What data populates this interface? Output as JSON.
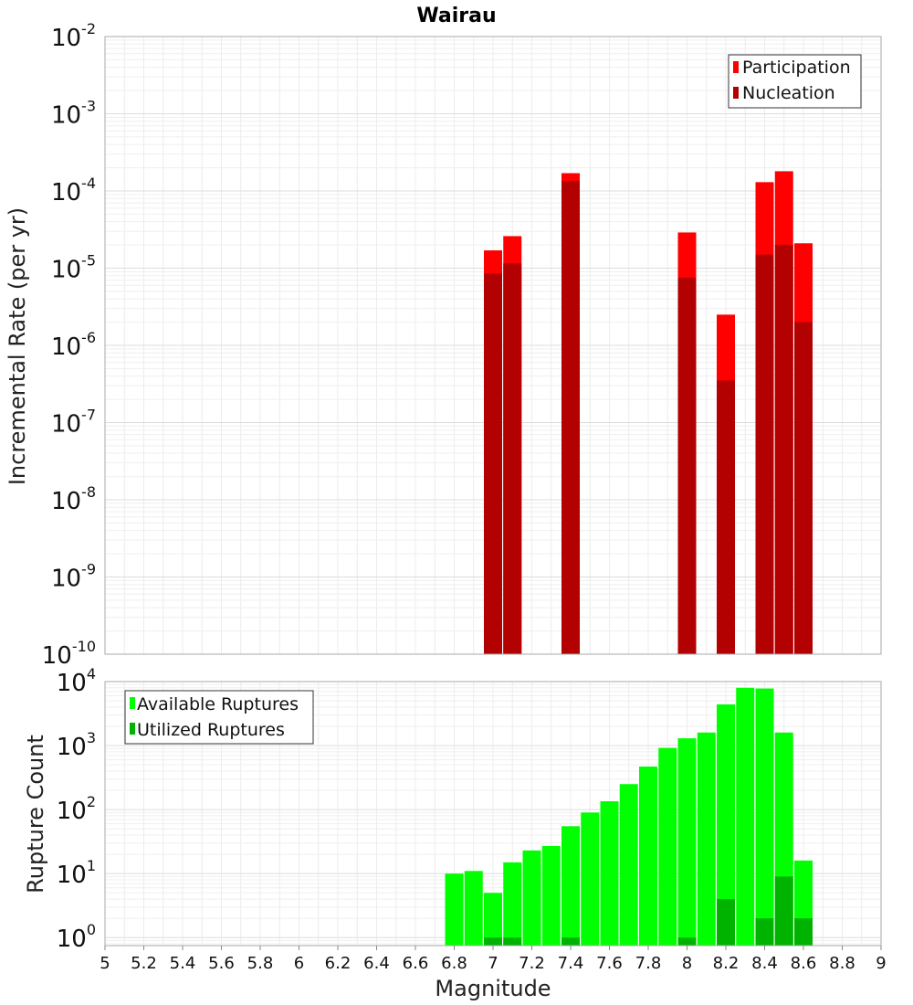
{
  "chart_data": [
    {
      "type": "bar",
      "title": "Wairau",
      "xlabel": "",
      "ylabel": "Incremental Rate (per yr)",
      "yscale": "log",
      "xlim": [
        5,
        9
      ],
      "ylim": [
        1e-10,
        0.01
      ],
      "y_ticks": [
        {
          "base": "10",
          "exp": "-10"
        },
        {
          "base": "10",
          "exp": "-9"
        },
        {
          "base": "10",
          "exp": "-8"
        },
        {
          "base": "10",
          "exp": "-7"
        },
        {
          "base": "10",
          "exp": "-6"
        },
        {
          "base": "10",
          "exp": "-5"
        },
        {
          "base": "10",
          "exp": "-4"
        },
        {
          "base": "10",
          "exp": "-3"
        },
        {
          "base": "10",
          "exp": "-2"
        }
      ],
      "legend": {
        "position": "top-right",
        "entries": [
          "Participation",
          "Nucleation"
        ]
      },
      "grid": true,
      "series": [
        {
          "name": "Participation",
          "color": "#ff0000",
          "x": [
            7.0,
            7.1,
            7.4,
            8.0,
            8.2,
            8.4,
            8.5,
            8.6
          ],
          "values": [
            1.7e-05,
            2.6e-05,
            0.00017,
            2.9e-05,
            2.5e-06,
            0.00013,
            0.00018,
            2.1e-05
          ]
        },
        {
          "name": "Nucleation",
          "color": "#b30000",
          "x": [
            7.0,
            7.1,
            7.4,
            8.0,
            8.2,
            8.4,
            8.5,
            8.6
          ],
          "values": [
            8.5e-06,
            1.15e-05,
            0.000135,
            7.5e-06,
            3.5e-07,
            1.5e-05,
            2e-05,
            2e-06
          ]
        }
      ]
    },
    {
      "type": "bar",
      "title": "",
      "xlabel": "Magnitude",
      "ylabel": "Rupture Count",
      "yscale": "log",
      "xlim": [
        5,
        9
      ],
      "ylim": [
        0.75,
        10000
      ],
      "x_ticks": [
        "5",
        "5.2",
        "5.4",
        "5.6",
        "5.8",
        "6",
        "6.2",
        "6.4",
        "6.6",
        "6.8",
        "7",
        "7.2",
        "7.4",
        "7.6",
        "7.8",
        "8",
        "8.2",
        "8.4",
        "8.6",
        "8.8",
        "9"
      ],
      "y_ticks": [
        {
          "base": "10",
          "exp": "0"
        },
        {
          "base": "10",
          "exp": "1"
        },
        {
          "base": "10",
          "exp": "2"
        },
        {
          "base": "10",
          "exp": "3"
        },
        {
          "base": "10",
          "exp": "4"
        }
      ],
      "legend": {
        "position": "top-left",
        "entries": [
          "Available Ruptures",
          "Utilized Ruptures"
        ]
      },
      "grid": true,
      "series": [
        {
          "name": "Available Ruptures",
          "color": "#00ff00",
          "x": [
            6.8,
            6.9,
            7.0,
            7.1,
            7.2,
            7.3,
            7.4,
            7.5,
            7.6,
            7.7,
            7.8,
            7.9,
            8.0,
            8.1,
            8.2,
            8.3,
            8.4,
            8.5,
            8.6
          ],
          "values": [
            10,
            11,
            5,
            15,
            23,
            27,
            55,
            90,
            135,
            250,
            470,
            920,
            1300,
            1600,
            4400,
            8000,
            7800,
            1600,
            16
          ]
        },
        {
          "name": "Utilized Ruptures",
          "color": "#00b300",
          "x": [
            7.0,
            7.1,
            7.4,
            8.0,
            8.2,
            8.4,
            8.5,
            8.6
          ],
          "values": [
            1,
            1,
            1,
            1,
            4,
            2,
            9,
            2
          ]
        }
      ]
    }
  ]
}
